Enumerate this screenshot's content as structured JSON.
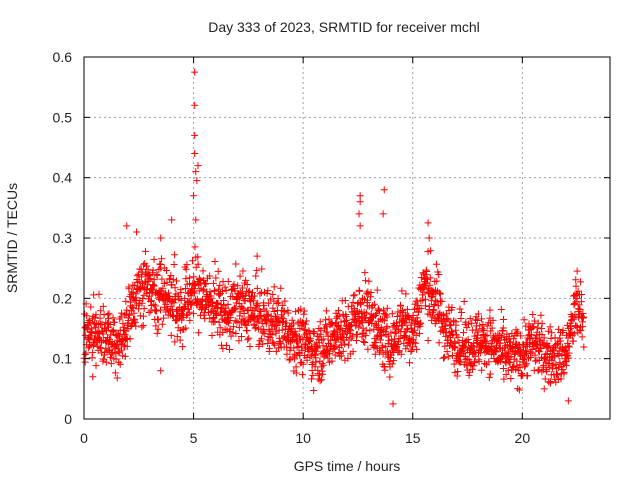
{
  "chart_data": {
    "type": "scatter",
    "title": "Day 333 of 2023, SRMTID for receiver mchl",
    "xlabel": "GPS time / hours",
    "ylabel": "SRMTID / TECUs",
    "xlim": [
      0,
      24
    ],
    "ylim": [
      0,
      0.6
    ],
    "xticks": [
      0,
      5,
      10,
      15,
      20
    ],
    "yticks": [
      0,
      0.1,
      0.2,
      0.3,
      0.4,
      0.5,
      0.6
    ],
    "grid": true,
    "marker": "+",
    "color": "#ff0000",
    "series": [
      {
        "name": "mchl",
        "trend": [
          [
            0.0,
            0.15
          ],
          [
            0.5,
            0.14
          ],
          [
            1.0,
            0.13
          ],
          [
            1.5,
            0.12
          ],
          [
            2.0,
            0.17
          ],
          [
            2.5,
            0.21
          ],
          [
            3.0,
            0.22
          ],
          [
            3.5,
            0.21
          ],
          [
            4.0,
            0.2
          ],
          [
            4.5,
            0.18
          ],
          [
            5.0,
            0.22
          ],
          [
            5.5,
            0.2
          ],
          [
            6.0,
            0.19
          ],
          [
            6.5,
            0.17
          ],
          [
            7.0,
            0.19
          ],
          [
            7.5,
            0.18
          ],
          [
            8.0,
            0.17
          ],
          [
            8.5,
            0.16
          ],
          [
            9.0,
            0.16
          ],
          [
            9.5,
            0.14
          ],
          [
            10.0,
            0.13
          ],
          [
            10.5,
            0.11
          ],
          [
            11.0,
            0.12
          ],
          [
            11.5,
            0.15
          ],
          [
            12.0,
            0.14
          ],
          [
            12.5,
            0.17
          ],
          [
            13.0,
            0.18
          ],
          [
            13.5,
            0.14
          ],
          [
            14.0,
            0.12
          ],
          [
            14.5,
            0.16
          ],
          [
            15.0,
            0.14
          ],
          [
            15.5,
            0.22
          ],
          [
            16.0,
            0.2
          ],
          [
            16.5,
            0.15
          ],
          [
            17.0,
            0.13
          ],
          [
            17.5,
            0.12
          ],
          [
            18.0,
            0.13
          ],
          [
            18.5,
            0.13
          ],
          [
            19.0,
            0.11
          ],
          [
            19.5,
            0.1
          ],
          [
            20.0,
            0.11
          ],
          [
            20.5,
            0.13
          ],
          [
            21.0,
            0.11
          ],
          [
            21.5,
            0.1
          ],
          [
            22.0,
            0.11
          ],
          [
            22.5,
            0.19
          ],
          [
            22.8,
            0.15
          ]
        ],
        "spread": 0.04,
        "points_per_hour": 88,
        "outliers": [
          [
            5.05,
            0.575
          ],
          [
            5.05,
            0.52
          ],
          [
            5.05,
            0.47
          ],
          [
            5.05,
            0.44
          ],
          [
            5.1,
            0.41
          ],
          [
            5.15,
            0.395
          ],
          [
            5.2,
            0.42
          ],
          [
            5.0,
            0.37
          ],
          [
            5.1,
            0.33
          ],
          [
            4.0,
            0.33
          ],
          [
            13.7,
            0.38
          ],
          [
            13.65,
            0.34
          ],
          [
            12.6,
            0.37
          ],
          [
            12.6,
            0.36
          ],
          [
            12.55,
            0.34
          ],
          [
            12.6,
            0.32
          ],
          [
            15.7,
            0.325
          ],
          [
            15.75,
            0.3
          ],
          [
            1.95,
            0.32
          ],
          [
            2.4,
            0.31
          ],
          [
            7.9,
            0.27
          ],
          [
            3.5,
            0.3
          ],
          [
            22.5,
            0.245
          ],
          [
            14.1,
            0.025
          ],
          [
            22.1,
            0.03
          ],
          [
            3.5,
            0.08
          ],
          [
            4.5,
            0.12
          ],
          [
            0.4,
            0.07
          ],
          [
            21.0,
            0.05
          ]
        ]
      }
    ]
  }
}
